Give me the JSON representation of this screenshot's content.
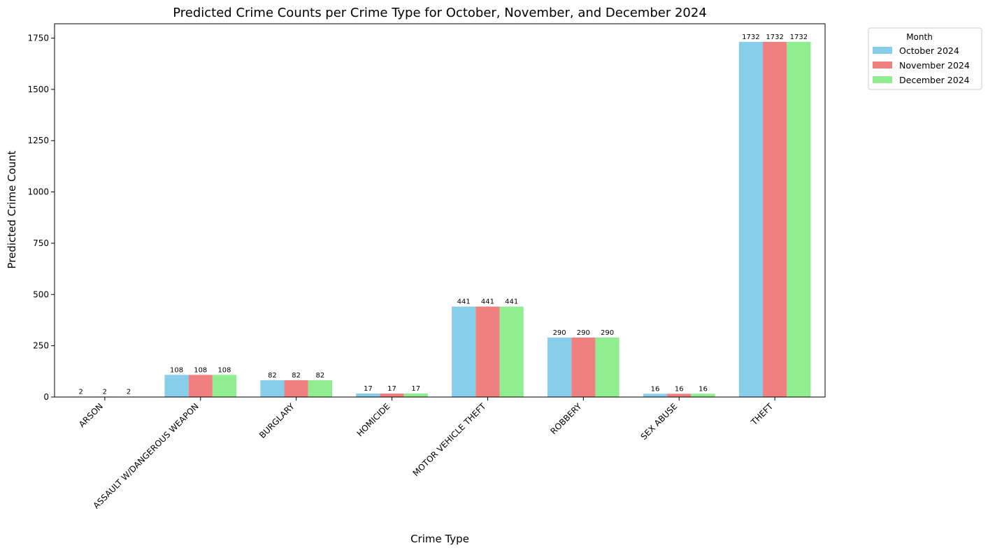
{
  "chart_data": {
    "type": "bar",
    "title": "Predicted Crime Counts per Crime Type for October, November, and December 2024",
    "xlabel": "Crime Type",
    "ylabel": "Predicted Crime Count",
    "categories": [
      "ARSON",
      "ASSAULT W/DANGEROUS WEAPON",
      "BURGLARY",
      "HOMICIDE",
      "MOTOR VEHICLE THEFT",
      "ROBBERY",
      "SEX ABUSE",
      "THEFT"
    ],
    "series": [
      {
        "name": "October 2024",
        "color": "#87ceeb",
        "values": [
          2,
          108,
          82,
          17,
          441,
          290,
          16,
          1732
        ]
      },
      {
        "name": "November 2024",
        "color": "#f08080",
        "values": [
          2,
          108,
          82,
          17,
          441,
          290,
          16,
          1732
        ]
      },
      {
        "name": "December 2024",
        "color": "#90ee90",
        "values": [
          2,
          108,
          82,
          17,
          441,
          290,
          16,
          1732
        ]
      }
    ],
    "ylim": [
      0,
      1820
    ],
    "yticks": [
      0,
      250,
      500,
      750,
      1000,
      1250,
      1500,
      1750
    ],
    "grid": false,
    "legend": {
      "title": "Month",
      "placement": "outside-top-right"
    }
  }
}
